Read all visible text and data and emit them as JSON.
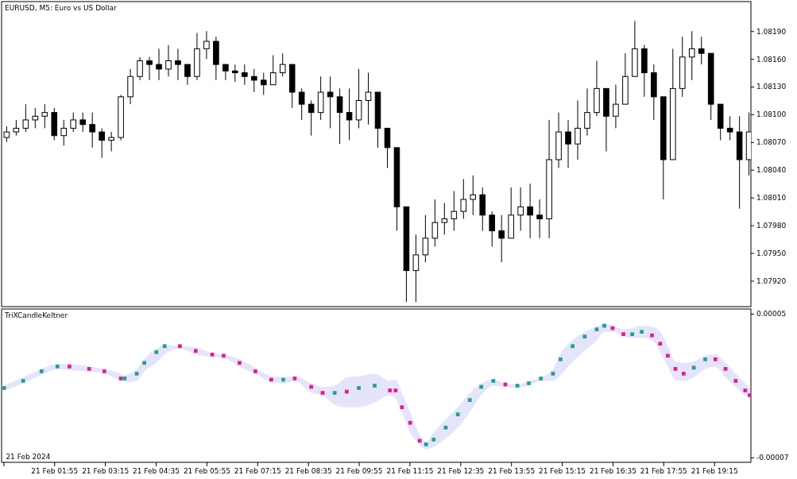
{
  "chart_data": [
    {
      "type": "candlestick",
      "title": "EURUSD, M5:  Euro vs US Dollar",
      "tick_labels": "y",
      "xlim": [
        "2024-02-21T00:32",
        "2024-02-21T20:13"
      ],
      "ylim": [
        1.07892,
        1.08222
      ],
      "yticks": [
        {
          "value": 1.0792,
          "label": "1.07920"
        },
        {
          "value": 1.0795,
          "label": "1.07950"
        },
        {
          "value": 1.0798,
          "label": "1.07980"
        },
        {
          "value": 1.0801,
          "label": "1.08010"
        },
        {
          "value": 1.0804,
          "label": "1.08040"
        },
        {
          "value": 1.0807,
          "label": "1.08070"
        },
        {
          "value": 1.081,
          "label": "1.08100"
        },
        {
          "value": 1.0813,
          "label": "1.08130"
        },
        {
          "value": 1.0816,
          "label": "1.08160"
        },
        {
          "value": 1.0819,
          "label": "1.08190"
        }
      ],
      "x": [
        "2024-02-21T00:40",
        "2024-02-21T00:55",
        "2024-02-21T01:10",
        "2024-02-21T01:25",
        "2024-02-21T01:40",
        "2024-02-21T01:55",
        "2024-02-21T02:10",
        "2024-02-21T02:25",
        "2024-02-21T02:40",
        "2024-02-21T02:55",
        "2024-02-21T03:10",
        "2024-02-21T03:25",
        "2024-02-21T03:40",
        "2024-02-21T03:55",
        "2024-02-21T04:10",
        "2024-02-21T04:25",
        "2024-02-21T04:40",
        "2024-02-21T04:55",
        "2024-02-21T05:10",
        "2024-02-21T05:25",
        "2024-02-21T05:40",
        "2024-02-21T05:55",
        "2024-02-21T06:10",
        "2024-02-21T06:25",
        "2024-02-21T06:40",
        "2024-02-21T06:55",
        "2024-02-21T07:10",
        "2024-02-21T07:25",
        "2024-02-21T07:40",
        "2024-02-21T07:55",
        "2024-02-21T08:10",
        "2024-02-21T08:25",
        "2024-02-21T08:40",
        "2024-02-21T08:55",
        "2024-02-21T09:10",
        "2024-02-21T09:25",
        "2024-02-21T09:40",
        "2024-02-21T09:55",
        "2024-02-21T10:10",
        "2024-02-21T10:25",
        "2024-02-21T10:40",
        "2024-02-21T10:55",
        "2024-02-21T11:10",
        "2024-02-21T11:25",
        "2024-02-21T11:40",
        "2024-02-21T11:55",
        "2024-02-21T12:10",
        "2024-02-21T12:25",
        "2024-02-21T12:40",
        "2024-02-21T12:55",
        "2024-02-21T13:10",
        "2024-02-21T13:25",
        "2024-02-21T13:40",
        "2024-02-21T13:55",
        "2024-02-21T14:10",
        "2024-02-21T14:25",
        "2024-02-21T14:40",
        "2024-02-21T14:55",
        "2024-02-21T15:10",
        "2024-02-21T15:25",
        "2024-02-21T15:40",
        "2024-02-21T15:55",
        "2024-02-21T16:10",
        "2024-02-21T16:25",
        "2024-02-21T16:40",
        "2024-02-21T16:55",
        "2024-02-21T17:10",
        "2024-02-21T17:25",
        "2024-02-21T17:40",
        "2024-02-21T17:55",
        "2024-02-21T18:10",
        "2024-02-21T18:25",
        "2024-02-21T18:40",
        "2024-02-21T18:55",
        "2024-02-21T19:10",
        "2024-02-21T19:25",
        "2024-02-21T19:40",
        "2024-02-21T19:55",
        "2024-02-21T20:10"
      ],
      "ohlc": [
        [
          1.08075,
          1.08087,
          1.0807,
          1.08081
        ],
        [
          1.08081,
          1.08094,
          1.08077,
          1.08085
        ],
        [
          1.08085,
          1.08111,
          1.08081,
          1.08094
        ],
        [
          1.08094,
          1.08107,
          1.08085,
          1.08098
        ],
        [
          1.08098,
          1.08111,
          1.08085,
          1.08102
        ],
        [
          1.08102,
          1.08107,
          1.08072,
          1.08077
        ],
        [
          1.08077,
          1.08094,
          1.08066,
          1.08085
        ],
        [
          1.08085,
          1.08102,
          1.08081,
          1.08094
        ],
        [
          1.08094,
          1.08102,
          1.08081,
          1.08089
        ],
        [
          1.08089,
          1.08102,
          1.08064,
          1.08081
        ],
        [
          1.08081,
          1.08085,
          1.08053,
          1.08072
        ],
        [
          1.08072,
          1.08081,
          1.0806,
          1.08075
        ],
        [
          1.08075,
          1.08121,
          1.08072,
          1.08119
        ],
        [
          1.08119,
          1.08149,
          1.08111,
          1.08141
        ],
        [
          1.08141,
          1.08162,
          1.08137,
          1.08158
        ],
        [
          1.08158,
          1.08162,
          1.08137,
          1.08154
        ],
        [
          1.08154,
          1.08171,
          1.08137,
          1.08149
        ],
        [
          1.08149,
          1.08175,
          1.08141,
          1.08158
        ],
        [
          1.08158,
          1.08171,
          1.08137,
          1.08154
        ],
        [
          1.08154,
          1.08154,
          1.08132,
          1.08141
        ],
        [
          1.08141,
          1.08188,
          1.08137,
          1.08171
        ],
        [
          1.08171,
          1.0819,
          1.0816,
          1.08179
        ],
        [
          1.08179,
          1.08184,
          1.08137,
          1.08154
        ],
        [
          1.08154,
          1.08154,
          1.08137,
          1.08147
        ],
        [
          1.08147,
          1.08154,
          1.08135,
          1.08145
        ],
        [
          1.08145,
          1.08154,
          1.08132,
          1.08141
        ],
        [
          1.08141,
          1.08149,
          1.08124,
          1.08137
        ],
        [
          1.08137,
          1.08145,
          1.08121,
          1.08132
        ],
        [
          1.08132,
          1.08164,
          1.08132,
          1.08145
        ],
        [
          1.08145,
          1.08166,
          1.08141,
          1.08154
        ],
        [
          1.08154,
          1.08154,
          1.08107,
          1.08124
        ],
        [
          1.08124,
          1.08128,
          1.08094,
          1.08111
        ],
        [
          1.08111,
          1.08115,
          1.08077,
          1.08102
        ],
        [
          1.08102,
          1.08141,
          1.08094,
          1.08124
        ],
        [
          1.08124,
          1.08141,
          1.08085,
          1.08119
        ],
        [
          1.08119,
          1.08128,
          1.08068,
          1.08102
        ],
        [
          1.08102,
          1.08128,
          1.08072,
          1.08094
        ],
        [
          1.08094,
          1.08149,
          1.08085,
          1.08115
        ],
        [
          1.08115,
          1.08145,
          1.08089,
          1.08124
        ],
        [
          1.08124,
          1.08124,
          1.08064,
          1.08085
        ],
        [
          1.08085,
          1.08085,
          1.08042,
          1.08064
        ],
        [
          1.08064,
          1.08064,
          1.07974,
          1.08
        ],
        [
          1.08,
          1.08,
          1.07897,
          1.07931
        ],
        [
          1.07931,
          1.0797,
          1.07897,
          1.07948
        ],
        [
          1.07948,
          1.07991,
          1.0794,
          1.07966
        ],
        [
          1.07966,
          1.08008,
          1.07957,
          1.07983
        ],
        [
          1.07983,
          1.08004,
          1.0797,
          1.07987
        ],
        [
          1.07987,
          1.08017,
          1.07974,
          1.07995
        ],
        [
          1.07995,
          1.0803,
          1.07987,
          1.08008
        ],
        [
          1.08008,
          1.08034,
          1.07991,
          1.08013
        ],
        [
          1.08013,
          1.08021,
          1.07974,
          1.07991
        ],
        [
          1.07991,
          1.07995,
          1.07957,
          1.07974
        ],
        [
          1.07974,
          1.07991,
          1.0794,
          1.07966
        ],
        [
          1.07966,
          1.08021,
          1.07966,
          1.07991
        ],
        [
          1.07991,
          1.08021,
          1.07974,
          1.08
        ],
        [
          1.08,
          1.08025,
          1.07966,
          1.07991
        ],
        [
          1.07991,
          1.08008,
          1.07966,
          1.07987
        ],
        [
          1.07987,
          1.08094,
          1.07966,
          1.08051
        ],
        [
          1.08051,
          1.08102,
          1.08042,
          1.08081
        ],
        [
          1.08081,
          1.08094,
          1.08042,
          1.08068
        ],
        [
          1.08068,
          1.08115,
          1.08051,
          1.08085
        ],
        [
          1.08085,
          1.08128,
          1.08077,
          1.08102
        ],
        [
          1.08102,
          1.08158,
          1.08098,
          1.08128
        ],
        [
          1.08128,
          1.08128,
          1.0806,
          1.08098
        ],
        [
          1.08098,
          1.08132,
          1.08085,
          1.08111
        ],
        [
          1.08111,
          1.08166,
          1.08111,
          1.08141
        ],
        [
          1.08141,
          1.08201,
          1.08141,
          1.08171
        ],
        [
          1.08171,
          1.08175,
          1.08119,
          1.08145
        ],
        [
          1.08145,
          1.08154,
          1.08094,
          1.08119
        ],
        [
          1.08119,
          1.08119,
          1.08008,
          1.08051
        ],
        [
          1.08051,
          1.08171,
          1.08051,
          1.08128
        ],
        [
          1.08128,
          1.08184,
          1.08119,
          1.08162
        ],
        [
          1.08162,
          1.0819,
          1.08137,
          1.08171
        ],
        [
          1.08171,
          1.08184,
          1.08154,
          1.08166
        ],
        [
          1.08166,
          1.08166,
          1.08094,
          1.08111
        ],
        [
          1.08111,
          1.08111,
          1.08072,
          1.08085
        ],
        [
          1.08085,
          1.08098,
          1.08072,
          1.08081
        ],
        [
          1.08081,
          1.08098,
          1.07998,
          1.08051
        ],
        [
          1.08051,
          1.08102,
          1.08034,
          1.08081
        ]
      ]
    },
    {
      "type": "scatter",
      "title": "TriXCandleKeltner",
      "marker": "square",
      "xlim": [
        "2024-02-21T00:32",
        "2024-02-21T20:13"
      ],
      "ylim": [
        -7.4e-05,
        5.4e-05
      ],
      "yticks": [
        {
          "value": 5e-05,
          "label": "0.00005"
        },
        {
          "value": -7e-05,
          "label": "-0.00007"
        }
      ],
      "annotations": [
        "21 Feb 2024"
      ],
      "xticks": [
        {
          "value": "2024-02-21T00:35",
          "label": null
        },
        {
          "value": "2024-02-21T01:55",
          "label": "21 Feb 01:55"
        },
        {
          "value": "2024-02-21T03:15",
          "label": "21 Feb 03:15"
        },
        {
          "value": "2024-02-21T04:35",
          "label": "21 Feb 04:35"
        },
        {
          "value": "2024-02-21T05:55",
          "label": "21 Feb 05:55"
        },
        {
          "value": "2024-02-21T07:15",
          "label": "21 Feb 07:15"
        },
        {
          "value": "2024-02-21T08:35",
          "label": "21 Feb 08:35"
        },
        {
          "value": "2024-02-21T09:55",
          "label": "21 Feb 09:55"
        },
        {
          "value": "2024-02-21T11:15",
          "label": "21 Feb 11:15"
        },
        {
          "value": "2024-02-21T12:35",
          "label": "21 Feb 12:35"
        },
        {
          "value": "2024-02-21T13:55",
          "label": "21 Feb 13:55"
        },
        {
          "value": "2024-02-21T15:15",
          "label": "21 Feb 15:15"
        },
        {
          "value": "2024-02-21T16:35",
          "label": "21 Feb 16:35"
        },
        {
          "value": "2024-02-21T17:55",
          "label": "21 Feb 17:55"
        },
        {
          "value": "2024-02-21T19:15",
          "label": "21 Feb 19:15"
        }
      ],
      "series": [
        {
          "color": "#e4e4fa",
          "x": [
            "2024-02-21T00:36",
            "2024-02-21T01:06",
            "2024-02-21T01:35",
            "2024-02-21T02:00",
            "2024-02-21T02:19",
            "2024-02-21T02:50",
            "2024-02-21T03:14",
            "2024-02-21T03:40",
            "2024-02-21T03:46",
            "2024-02-21T04:05",
            "2024-02-21T04:17",
            "2024-02-21T04:36",
            "2024-02-21T04:49",
            "2024-02-21T05:13",
            "2024-02-21T05:38",
            "2024-02-21T06:04",
            "2024-02-21T06:22",
            "2024-02-21T06:47",
            "2024-02-21T07:12",
            "2024-02-21T07:37",
            "2024-02-21T07:56",
            "2024-02-21T08:14",
            "2024-02-21T08:40",
            "2024-02-21T08:58",
            "2024-02-21T09:17",
            "2024-02-21T09:36",
            "2024-02-21T09:55",
            "2024-02-21T10:20",
            "2024-02-21T10:44",
            "2024-02-21T10:53",
            "2024-02-21T11:03",
            "2024-02-21T11:16",
            "2024-02-21T11:31",
            "2024-02-21T11:41",
            "2024-02-21T11:53",
            "2024-02-21T12:12",
            "2024-02-21T12:31",
            "2024-02-21T12:50",
            "2024-02-21T13:08",
            "2024-02-21T13:27",
            "2024-02-21T13:46",
            "2024-02-21T14:05",
            "2024-02-21T14:23",
            "2024-02-21T14:42",
            "2024-02-21T15:01",
            "2024-02-21T15:13",
            "2024-02-21T15:32",
            "2024-02-21T15:51",
            "2024-02-21T16:10",
            "2024-02-21T16:22",
            "2024-02-21T16:35",
            "2024-02-21T16:52",
            "2024-02-21T17:06",
            "2024-02-21T17:21",
            "2024-02-21T17:37",
            "2024-02-21T17:50",
            "2024-02-21T18:02",
            "2024-02-21T18:14",
            "2024-02-21T18:27",
            "2024-02-21T18:43",
            "2024-02-21T19:01",
            "2024-02-21T19:17",
            "2024-02-21T19:33",
            "2024-02-21T19:49",
            "2024-02-21T20:04",
            "2024-02-21T20:11"
          ],
          "values": [
            -1.2e-05,
            -6e-06,
            2e-06,
            6e-06,
            6e-06,
            4e-06,
            2e-06,
            -4e-06,
            -4e-06,
            0.0,
            9e-06,
            1.8e-05,
            2.3e-05,
            2.3e-05,
            1.9e-05,
            1.6e-05,
            1.5e-05,
            9e-06,
            2e-06,
            -5e-06,
            -5e-06,
            -4e-06,
            -1.1e-05,
            -1.6e-05,
            -1.6e-05,
            -1.5e-05,
            -1.2e-05,
            -1e-05,
            -1.4e-05,
            -1.4e-05,
            -2.8e-05,
            -4.1e-05,
            -5.6e-05,
            -5.9e-05,
            -5.5e-05,
            -4.5e-05,
            -3.4e-05,
            -2.2e-05,
            -1.1e-05,
            -6e-06,
            -9e-06,
            -1e-05,
            -8e-06,
            -4e-06,
            0.0,
            1.2e-05,
            2.3e-05,
            3.1e-05,
            3.7e-05,
            4e-05,
            3.8e-05,
            3.3e-05,
            3.3e-05,
            3.5e-05,
            3.2e-05,
            2.5e-05,
            1.5e-05,
            4e-06,
            0.0,
            5e-06,
            1.2e-05,
            1.2e-05,
            4e-06,
            -6e-06,
            -1.4e-05,
            -1.8e-05
          ],
          "upper": [
            -1e-05,
            -3e-06,
            4e-06,
            8e-06,
            8e-06,
            6e-06,
            4e-06,
            0.0,
            -1e-06,
            4e-06,
            1.2e-05,
            2.1e-05,
            2.4e-05,
            2.3e-05,
            2.2e-05,
            1.7e-05,
            1.6e-05,
            1.2e-05,
            5e-06,
            -2e-06,
            -3e-06,
            -2e-06,
            -8e-06,
            -1.1e-05,
            -1e-05,
            -3e-06,
            -2e-06,
            0.0,
            -6e-06,
            -5e-06,
            -1.6e-05,
            -3.2e-05,
            -5.1e-05,
            -5.7e-05,
            -4.9e-05,
            -3.8e-05,
            -2.8e-05,
            -1.6e-05,
            -8e-06,
            -5e-06,
            -8e-06,
            -9e-06,
            -6e-06,
            -3e-06,
            4e-06,
            1.7e-05,
            2.8e-05,
            3.5e-05,
            3.9e-05,
            4.2e-05,
            4e-05,
            3.7e-05,
            3.8e-05,
            4e-05,
            3.9e-05,
            3.5e-05,
            2.3e-05,
            1e-05,
            9e-06,
            1e-05,
            1.5e-05,
            1.6e-05,
            9e-06,
            0.0,
            -8e-06,
            -1.2e-05
          ],
          "lower": [
            -1.4e-05,
            -8e-06,
            -1e-06,
            4e-06,
            3e-06,
            2e-06,
            0.0,
            -6e-06,
            -7e-06,
            -6e-06,
            2e-06,
            9e-06,
            1.6e-05,
            2.1e-05,
            1.6e-05,
            1.4e-05,
            1.3e-05,
            6e-06,
            0.0,
            -7e-06,
            -8e-06,
            -6e-06,
            -1.6e-05,
            -1.8e-05,
            -2.6e-05,
            -2.8e-05,
            -2.8e-05,
            -2.4e-05,
            -1.8e-05,
            -2.1e-05,
            -3.2e-05,
            -4.9e-05,
            -5.9e-05,
            -6.3e-05,
            -6.1e-05,
            -5.4e-05,
            -4.5e-05,
            -3.2e-05,
            -1.8e-05,
            -1e-05,
            -1.1e-05,
            -1.2e-05,
            -1e-05,
            -6e-06,
            -6e-06,
            -1e-06,
            1e-05,
            1.9e-05,
            2.8e-05,
            3.5e-05,
            3.5e-05,
            3.1e-05,
            3e-05,
            3e-05,
            2.8e-05,
            1.8e-05,
            6e-06,
            -5e-06,
            -6e-06,
            -3e-06,
            4e-06,
            6e-06,
            -3e-06,
            -1.1e-05,
            -1.8e-05,
            -2e-05
          ],
          "colors": [
            "#20a090",
            "#20a090",
            "#20a090",
            "#20a090",
            "#e8198c",
            "#e8198c",
            "#e8198c",
            "#e8198c",
            "#20a090",
            "#20a090",
            "#20a090",
            "#20a090",
            "#20a090",
            "#e8198c",
            "#e8198c",
            "#e8198c",
            "#e8198c",
            "#e8198c",
            "#e8198c",
            "#e8198c",
            "#20a090",
            "#e8198c",
            "#e8198c",
            "#e8198c",
            "#20a090",
            "#e8198c",
            "#20a090",
            "#20a090",
            "#e8198c",
            "#e8198c",
            "#e8198c",
            "#e8198c",
            "#e8198c",
            "#20a090",
            "#20a090",
            "#20a090",
            "#20a090",
            "#20a090",
            "#20a090",
            "#20a090",
            "#e8198c",
            "#20a090",
            "#20a090",
            "#20a090",
            "#20a090",
            "#20a090",
            "#20a090",
            "#20a090",
            "#20a090",
            "#20a090",
            "#e8198c",
            "#e8198c",
            "#20a090",
            "#20a090",
            "#e8198c",
            "#e8198c",
            "#e8198c",
            "#e8198c",
            "#e8198c",
            "#20a090",
            "#20a090",
            "#e8198c",
            "#e8198c",
            "#e8198c",
            "#e8198c",
            "#e8198c"
          ]
        }
      ]
    }
  ]
}
